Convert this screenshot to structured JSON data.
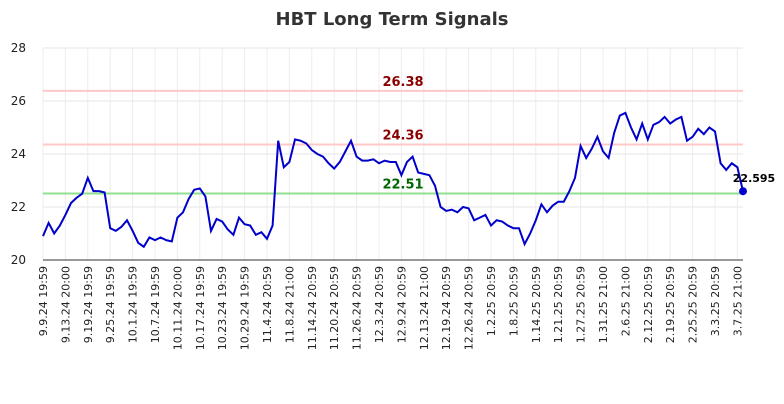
{
  "chart_data": {
    "type": "line",
    "title": "HBT Long Term Signals",
    "categories": [
      "9.9.24 19:59",
      null,
      null,
      null,
      "9.13.24 20:00",
      null,
      null,
      null,
      "9.19.24 19:59",
      null,
      null,
      null,
      "9.25.24 19:59",
      null,
      null,
      null,
      "10.1.24 19:59",
      null,
      null,
      null,
      "10.7.24 19:59",
      null,
      null,
      null,
      "10.11.24 20:00",
      null,
      null,
      null,
      "10.17.24 19:59",
      null,
      null,
      null,
      "10.23.24 19:59",
      null,
      null,
      null,
      "10.29.24 19:59",
      null,
      null,
      null,
      "11.4.24 20:59",
      null,
      null,
      null,
      "11.8.24 21:00",
      null,
      null,
      null,
      "11.14.24 20:59",
      null,
      null,
      null,
      "11.20.24 20:59",
      null,
      null,
      null,
      "11.26.24 20:59",
      null,
      null,
      null,
      "12.3.24 20:59",
      null,
      null,
      null,
      "12.9.24 20:59",
      null,
      null,
      null,
      "12.13.24 21:00",
      null,
      null,
      null,
      "12.19.24 20:59",
      null,
      null,
      null,
      "12.26.24 20:59",
      null,
      null,
      null,
      "1.2.25 20:59",
      null,
      null,
      null,
      "1.8.25 20:59",
      null,
      null,
      null,
      "1.14.25 20:59",
      null,
      null,
      null,
      "1.21.25 20:59",
      null,
      null,
      null,
      "1.27.25 20:59",
      null,
      null,
      null,
      "1.31.25 21:00",
      null,
      null,
      null,
      "2.6.25 21:00",
      null,
      null,
      null,
      "2.12.25 20:59",
      null,
      null,
      null,
      "2.19.25 20:59",
      null,
      null,
      null,
      "2.25.25 20:59",
      null,
      null,
      null,
      "3.3.25 20:59",
      null,
      null,
      null,
      "3.7.25 21:00",
      null
    ],
    "series": [
      {
        "color": "#0000cc",
        "values": [
          20.9,
          21.4,
          21.0,
          21.3,
          21.7,
          22.15,
          22.35,
          22.5,
          23.1,
          22.6,
          22.6,
          22.55,
          21.2,
          21.1,
          21.25,
          21.5,
          21.1,
          20.65,
          20.5,
          20.85,
          20.75,
          20.85,
          20.75,
          20.7,
          21.6,
          21.8,
          22.3,
          22.65,
          22.7,
          22.4,
          21.1,
          21.55,
          21.45,
          21.15,
          20.95,
          21.6,
          21.35,
          21.3,
          20.95,
          21.05,
          20.8,
          21.3,
          24.5,
          23.5,
          23.7,
          24.55,
          24.5,
          24.4,
          24.15,
          24.0,
          23.9,
          23.65,
          23.45,
          23.7,
          24.1,
          24.5,
          23.9,
          23.75,
          23.75,
          23.8,
          23.65,
          23.75,
          23.7,
          23.7,
          23.2,
          23.7,
          23.9,
          23.3,
          23.25,
          23.2,
          22.8,
          22.0,
          21.85,
          21.9,
          21.8,
          22.0,
          21.95,
          21.5,
          21.6,
          21.7,
          21.3,
          21.5,
          21.45,
          21.3,
          21.2,
          21.2,
          20.6,
          21.0,
          21.5,
          22.1,
          21.8,
          22.05,
          22.2,
          22.2,
          22.6,
          23.1,
          24.3,
          23.85,
          24.2,
          24.65,
          24.1,
          23.85,
          24.8,
          25.45,
          25.55,
          25.0,
          24.55,
          25.15,
          24.55,
          25.1,
          25.2,
          25.4,
          25.15,
          25.3,
          25.4,
          24.5,
          24.65,
          24.95,
          24.75,
          25.0,
          24.85,
          23.65,
          23.4,
          23.65,
          23.5,
          22.595
        ]
      }
    ],
    "hlines": [
      {
        "value": 26.38,
        "color": "#ffc8c8",
        "label_color": "#8b0000"
      },
      {
        "value": 24.36,
        "color": "#ffc8c8",
        "label_color": "#8b0000"
      },
      {
        "value": 22.51,
        "color": "#90e090",
        "label_color": "#006400"
      }
    ],
    "ylim": [
      20,
      28
    ],
    "yticks": [
      20,
      22,
      24,
      26,
      28
    ],
    "grid": true
  }
}
